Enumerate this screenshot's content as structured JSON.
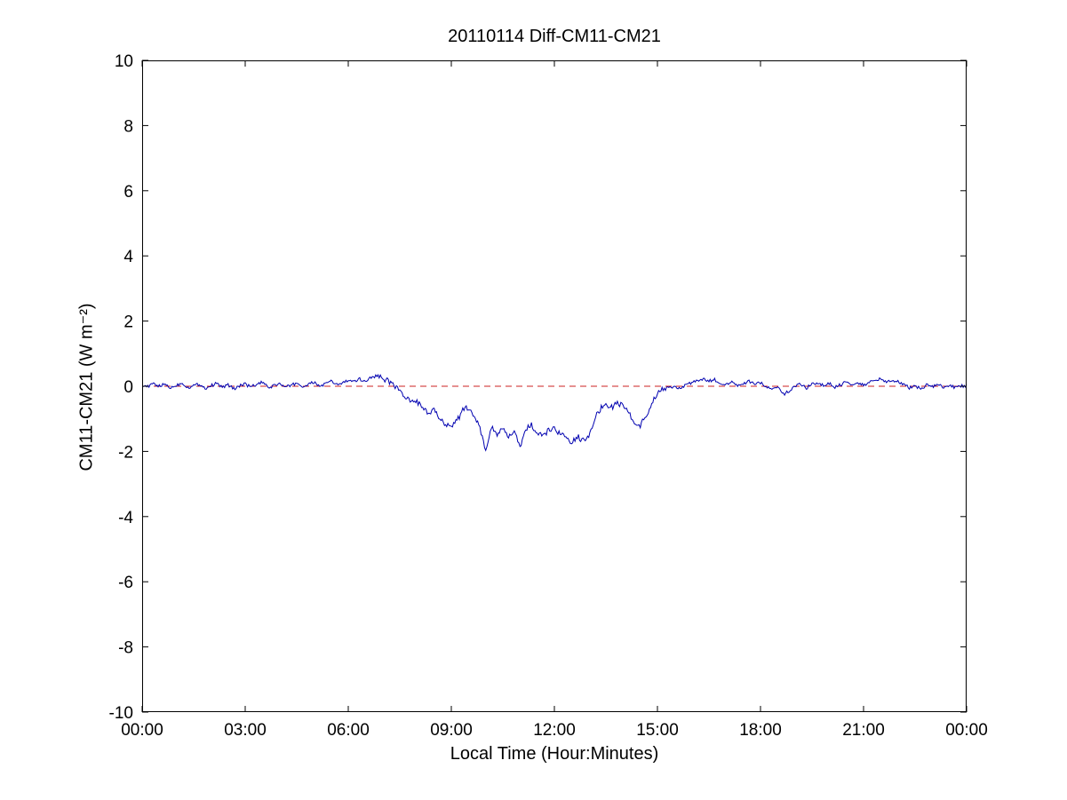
{
  "page": {
    "background_color": "#ffffff",
    "axis_color": "#000000",
    "tick_label_color": "#000000"
  },
  "chart_data": {
    "type": "line",
    "title": "20110114 Diff-CM11-CM21",
    "xlabel": "Local Time (Hour:Minutes)",
    "ylabel": "CM11-CM21 (W m⁻²)",
    "xlim_hours": [
      0,
      24
    ],
    "ylim": [
      -10,
      10
    ],
    "grid": false,
    "legend": "none",
    "x_ticks_hours": [
      0,
      3,
      6,
      9,
      12,
      15,
      18,
      21,
      24
    ],
    "x_tick_labels": [
      "00:00",
      "03:00",
      "06:00",
      "09:00",
      "12:00",
      "15:00",
      "18:00",
      "21:00",
      "00:00"
    ],
    "y_ticks": [
      -10,
      -8,
      -6,
      -4,
      -2,
      0,
      2,
      4,
      6,
      8,
      10
    ],
    "y_tick_labels": [
      "-10",
      "-8",
      "-6",
      "-4",
      "-2",
      "0",
      "2",
      "4",
      "6",
      "8",
      "10"
    ],
    "zero_reference_line": {
      "y": 0,
      "color": "#cc2222",
      "style": "dashed"
    },
    "series": [
      {
        "name": "CM11-CM21 difference",
        "color": "#0000b0",
        "style": "solid",
        "sample_interval_minutes": 10,
        "start_time": "00:00",
        "end_time": "24:00",
        "values": [
          0.05,
          -0.02,
          0.08,
          0.0,
          0.06,
          -0.05,
          0.03,
          0.1,
          -0.04,
          0.02,
          0.07,
          -0.06,
          0.01,
          0.09,
          -0.03,
          0.04,
          -0.08,
          0.02,
          0.06,
          -0.02,
          0.05,
          0.12,
          -0.05,
          0.02,
          0.08,
          -0.04,
          0.03,
          0.1,
          -0.02,
          0.05,
          0.12,
          0.0,
          0.07,
          0.15,
          0.05,
          0.1,
          0.18,
          0.12,
          0.22,
          0.15,
          0.28,
          0.32,
          0.25,
          0.15,
          0.05,
          -0.15,
          -0.35,
          -0.5,
          -0.45,
          -0.7,
          -0.85,
          -0.75,
          -1.0,
          -1.15,
          -1.2,
          -1.05,
          -0.75,
          -0.65,
          -0.9,
          -1.3,
          -2.0,
          -1.25,
          -1.45,
          -1.35,
          -1.55,
          -1.4,
          -1.9,
          -1.3,
          -1.2,
          -1.45,
          -1.55,
          -1.35,
          -1.3,
          -1.45,
          -1.6,
          -1.75,
          -1.55,
          -1.65,
          -1.5,
          -1.0,
          -0.7,
          -0.55,
          -0.65,
          -0.5,
          -0.6,
          -0.8,
          -1.15,
          -1.2,
          -0.9,
          -0.55,
          -0.2,
          -0.1,
          -0.05,
          0.0,
          -0.08,
          0.05,
          0.1,
          0.18,
          0.22,
          0.15,
          0.2,
          0.1,
          0.05,
          0.12,
          0.0,
          0.08,
          0.15,
          0.05,
          0.1,
          0.0,
          -0.1,
          -0.05,
          -0.25,
          -0.15,
          0.0,
          0.08,
          -0.05,
          0.05,
          0.12,
          0.02,
          0.08,
          -0.03,
          0.05,
          0.15,
          0.06,
          0.12,
          0.04,
          0.1,
          0.18,
          0.22,
          0.12,
          0.2,
          0.15,
          0.05,
          -0.05,
          0.02,
          -0.08,
          0.04,
          -0.02,
          0.06,
          -0.05,
          0.03,
          -0.04,
          0.02,
          0.0
        ]
      }
    ]
  }
}
